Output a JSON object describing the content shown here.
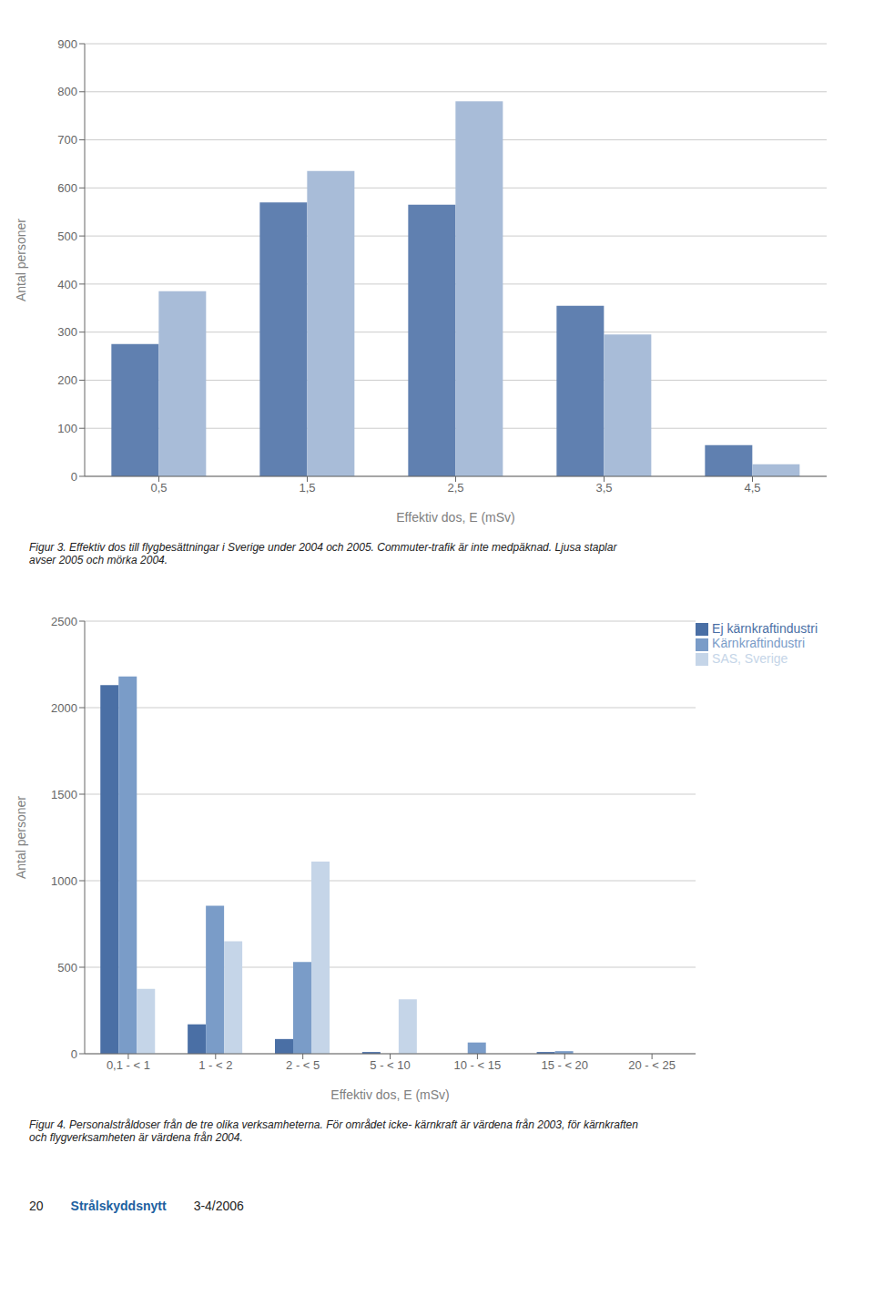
{
  "chart_data": [
    {
      "type": "bar",
      "categories": [
        "0,5",
        "1,5",
        "2,5",
        "3,5",
        "4,5"
      ],
      "series": [
        {
          "color": "#6080b0",
          "values": [
            275,
            570,
            565,
            355,
            65
          ]
        },
        {
          "color": "#a8bcd8",
          "values": [
            385,
            635,
            780,
            295,
            25
          ]
        }
      ],
      "xlabel": "Effektiv dos, E (mSv)",
      "ylabel": "Antal personer",
      "ylim": [
        0,
        900
      ],
      "yticks": [
        0,
        100,
        200,
        300,
        400,
        500,
        600,
        700,
        800,
        900
      ],
      "grid": true,
      "annotations": [
        "Figur 3. Effektiv dos till flygbesättningar i Sverige under 2004 och 2005. Commuter-trafik är inte medрäknad. Ljusa staplar",
        "avser 2005 och mörka 2004."
      ]
    },
    {
      "type": "bar",
      "categories": [
        "0,1 - < 1",
        "1 - < 2",
        "2 - < 5",
        "5 - < 10",
        "10 - < 15",
        "15 - < 20",
        "20 - < 25"
      ],
      "series": [
        {
          "name": "Ej kärnkraftindustri",
          "color": "#4a6fa5",
          "values": [
            2130,
            170,
            85,
            10,
            0,
            10,
            0
          ]
        },
        {
          "name": "Kärnkraftindustri",
          "color": "#7a9cc8",
          "values": [
            2180,
            855,
            530,
            0,
            65,
            15,
            0
          ]
        },
        {
          "name": "SAS, Sverige",
          "color": "#c5d5e8",
          "values": [
            375,
            650,
            1110,
            315,
            0,
            0,
            0
          ]
        }
      ],
      "xlabel": "Effektiv dos, E (mSv)",
      "ylabel": "Antal personer",
      "ylim": [
        0,
        2500
      ],
      "yticks": [
        0,
        500,
        1000,
        1500,
        2000,
        2500
      ],
      "grid": true,
      "legend": "upper right",
      "annotations": [
        "Figur 4. Personalstråldoser från de tre olika verksamheterna. För området icke- kärnkraft är värdena från 2003, för kärnkraften",
        "och flygverksamheten är värdena från 2004."
      ]
    }
  ],
  "annotations": [
    {
      "text": "20"
    },
    {
      "text": "Strålskyddsnytt",
      "color": "#2060a0"
    },
    {
      "text": "3-4/2006"
    }
  ]
}
